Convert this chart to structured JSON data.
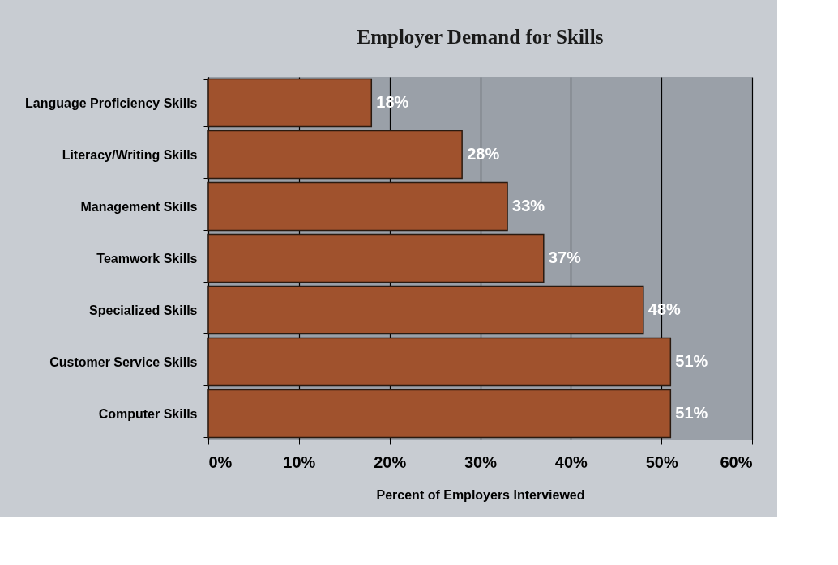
{
  "chart_data": {
    "type": "bar",
    "orientation": "horizontal",
    "title": "Employer Demand for Skills",
    "xlabel": "Percent of Employers Interviewed",
    "categories": [
      "Language Proficiency Skills",
      "Literacy/Writing Skills",
      "Management Skills",
      "Teamwork Skills",
      "Specialized Skills",
      "Customer Service Skills",
      "Computer Skills"
    ],
    "values": [
      18,
      28,
      33,
      37,
      48,
      51,
      51
    ],
    "value_labels": [
      "18%",
      "28%",
      "33%",
      "37%",
      "48%",
      "51%",
      "51%"
    ],
    "color": "#a0522d",
    "xlim": [
      0,
      60
    ],
    "xticks": [
      {
        "value": 0,
        "label": "0%"
      },
      {
        "value": 10,
        "label": "10%"
      },
      {
        "value": 20,
        "label": "20%"
      },
      {
        "value": 30,
        "label": "30%"
      },
      {
        "value": 40,
        "label": "40%"
      },
      {
        "value": 50,
        "label": "50%"
      },
      {
        "value": 60,
        "label": "60%"
      }
    ],
    "grid": "x"
  }
}
